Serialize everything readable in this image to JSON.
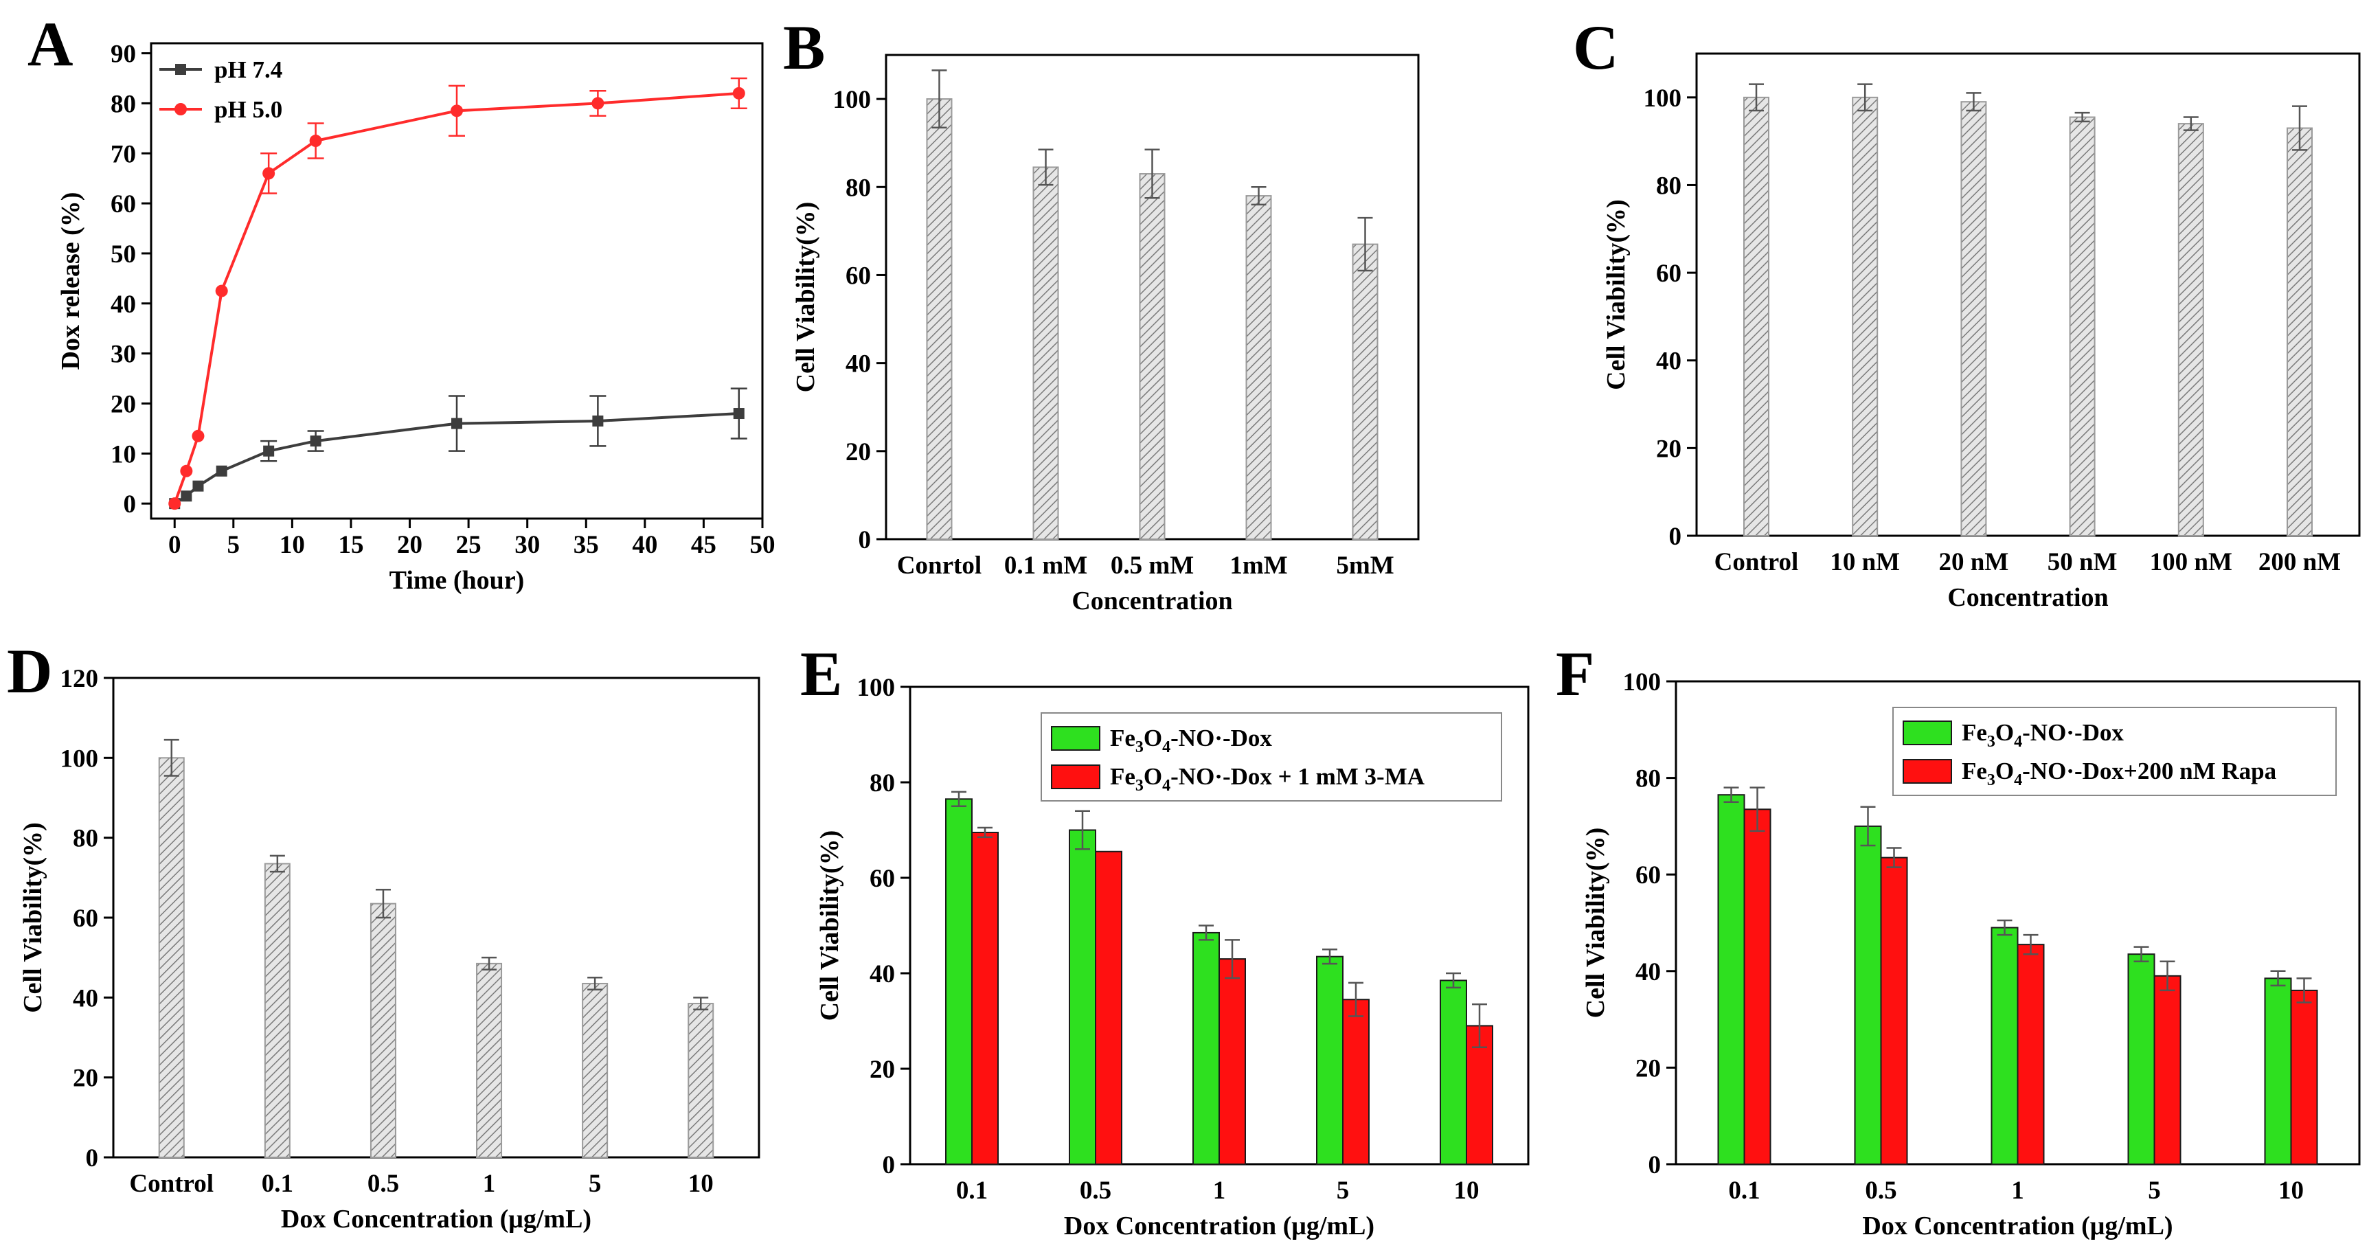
{
  "colors": {
    "gray_series": "#3d3d3d",
    "red_series": "#ff2b2b",
    "hatched_bar": "#9a9a9a",
    "green_bar": "#2ee01f",
    "red_bar": "#ff1010",
    "legend_border": "#888888"
  },
  "chart_data": [
    {
      "panel": "A",
      "type": "line",
      "xlabel": "Time (hour)",
      "ylabel": "Dox release (%)",
      "xlim": [
        -2,
        50
      ],
      "ylim": [
        -3,
        92
      ],
      "xticks": [
        0,
        5,
        10,
        15,
        20,
        25,
        30,
        35,
        40,
        45,
        50
      ],
      "yticks": [
        0,
        10,
        20,
        30,
        40,
        50,
        60,
        70,
        80,
        90
      ],
      "legend": "top-left",
      "series": [
        {
          "name": "pH 7.4",
          "marker": "square",
          "color": "#3d3d3d",
          "x": [
            0,
            1,
            2,
            4,
            8,
            12,
            24,
            36,
            48
          ],
          "y": [
            0,
            1.5,
            3.5,
            6.5,
            10.5,
            12.5,
            16,
            16.5,
            18
          ],
          "err": [
            0,
            0,
            0,
            0,
            2,
            2,
            5.5,
            5,
            5
          ]
        },
        {
          "name": "pH 5.0",
          "marker": "circle",
          "color": "#ff2b2b",
          "x": [
            0,
            1,
            2,
            4,
            8,
            12,
            24,
            36,
            48
          ],
          "y": [
            0,
            6.5,
            13.5,
            42.5,
            66,
            72.5,
            78.5,
            80,
            82
          ],
          "err": [
            0,
            0,
            0,
            0,
            4,
            3.5,
            5,
            2.5,
            3
          ]
        }
      ]
    },
    {
      "panel": "B",
      "type": "bar",
      "xlabel": "Concentration",
      "ylabel": "Cell Viability(%)",
      "ylim": [
        0,
        110
      ],
      "yticks": [
        0,
        20,
        40,
        60,
        80,
        100
      ],
      "categories": [
        "Conrtol",
        "0.1 mM",
        "0.5 mM",
        "1mM",
        "5mM"
      ],
      "series": [
        {
          "name": "viability",
          "values": [
            100,
            84.5,
            83,
            78,
            67
          ],
          "err": [
            6.5,
            4,
            5.5,
            2,
            6
          ]
        }
      ]
    },
    {
      "panel": "C",
      "type": "bar",
      "xlabel": "Concentration",
      "ylabel": "Cell Viability(%)",
      "ylim": [
        0,
        110
      ],
      "yticks": [
        0,
        20,
        40,
        60,
        80,
        100
      ],
      "categories": [
        "Control",
        "10 nM",
        "20 nM",
        "50 nM",
        "100 nM",
        "200 nM"
      ],
      "series": [
        {
          "name": "viability",
          "values": [
            100,
            100,
            99,
            95.5,
            94,
            93
          ],
          "err": [
            3,
            3,
            2,
            1,
            1.5,
            5
          ]
        }
      ]
    },
    {
      "panel": "D",
      "type": "bar",
      "xlabel": "Dox Concentration (μg/mL)",
      "ylabel": "Cell Viability(%)",
      "ylim": [
        0,
        120
      ],
      "yticks": [
        0,
        20,
        40,
        60,
        80,
        100,
        120
      ],
      "categories": [
        "Control",
        "0.1",
        "0.5",
        "1",
        "5",
        "10"
      ],
      "series": [
        {
          "name": "viability",
          "values": [
            100,
            73.5,
            63.5,
            48.5,
            43.5,
            38.5
          ],
          "err": [
            4.5,
            2,
            3.5,
            1.5,
            1.5,
            1.5
          ]
        }
      ]
    },
    {
      "panel": "E",
      "type": "bar",
      "xlabel": "Dox Concentration (μg/mL)",
      "ylabel": "Cell Viability(%)",
      "ylim": [
        0,
        100
      ],
      "yticks": [
        0,
        20,
        40,
        60,
        80,
        100
      ],
      "legend": "top-right",
      "categories": [
        "0.1",
        "0.5",
        "1",
        "5",
        "10"
      ],
      "series": [
        {
          "name": "Fe3O4-NO·-Dox",
          "values": [
            76.5,
            70,
            48.5,
            43.5,
            38.5
          ],
          "err": [
            1.5,
            4,
            1.5,
            1.5,
            1.5
          ]
        },
        {
          "name": "Fe3O4-NO·-Dox + 1 mM 3-MA",
          "values": [
            69.5,
            65.5,
            43,
            34.5,
            29
          ],
          "err": [
            1,
            0,
            4,
            3.5,
            4.5
          ]
        }
      ]
    },
    {
      "panel": "F",
      "type": "bar",
      "xlabel": "Dox Concentration (μg/mL)",
      "ylabel": "Cell Viability(%)",
      "ylim": [
        0,
        100
      ],
      "yticks": [
        0,
        20,
        40,
        60,
        80,
        100
      ],
      "legend": "top-right",
      "categories": [
        "0.1",
        "0.5",
        "1",
        "5",
        "10"
      ],
      "series": [
        {
          "name": "Fe3O4-NO·-Dox",
          "values": [
            76.5,
            70,
            49,
            43.5,
            38.5
          ],
          "err": [
            1.5,
            4,
            1.5,
            1.5,
            1.5
          ]
        },
        {
          "name": "Fe3O4-NO·-Dox+200 nM Rapa",
          "values": [
            73.5,
            63.5,
            45.5,
            39,
            36
          ],
          "err": [
            4.5,
            2,
            2,
            3,
            2.5
          ]
        }
      ]
    }
  ]
}
